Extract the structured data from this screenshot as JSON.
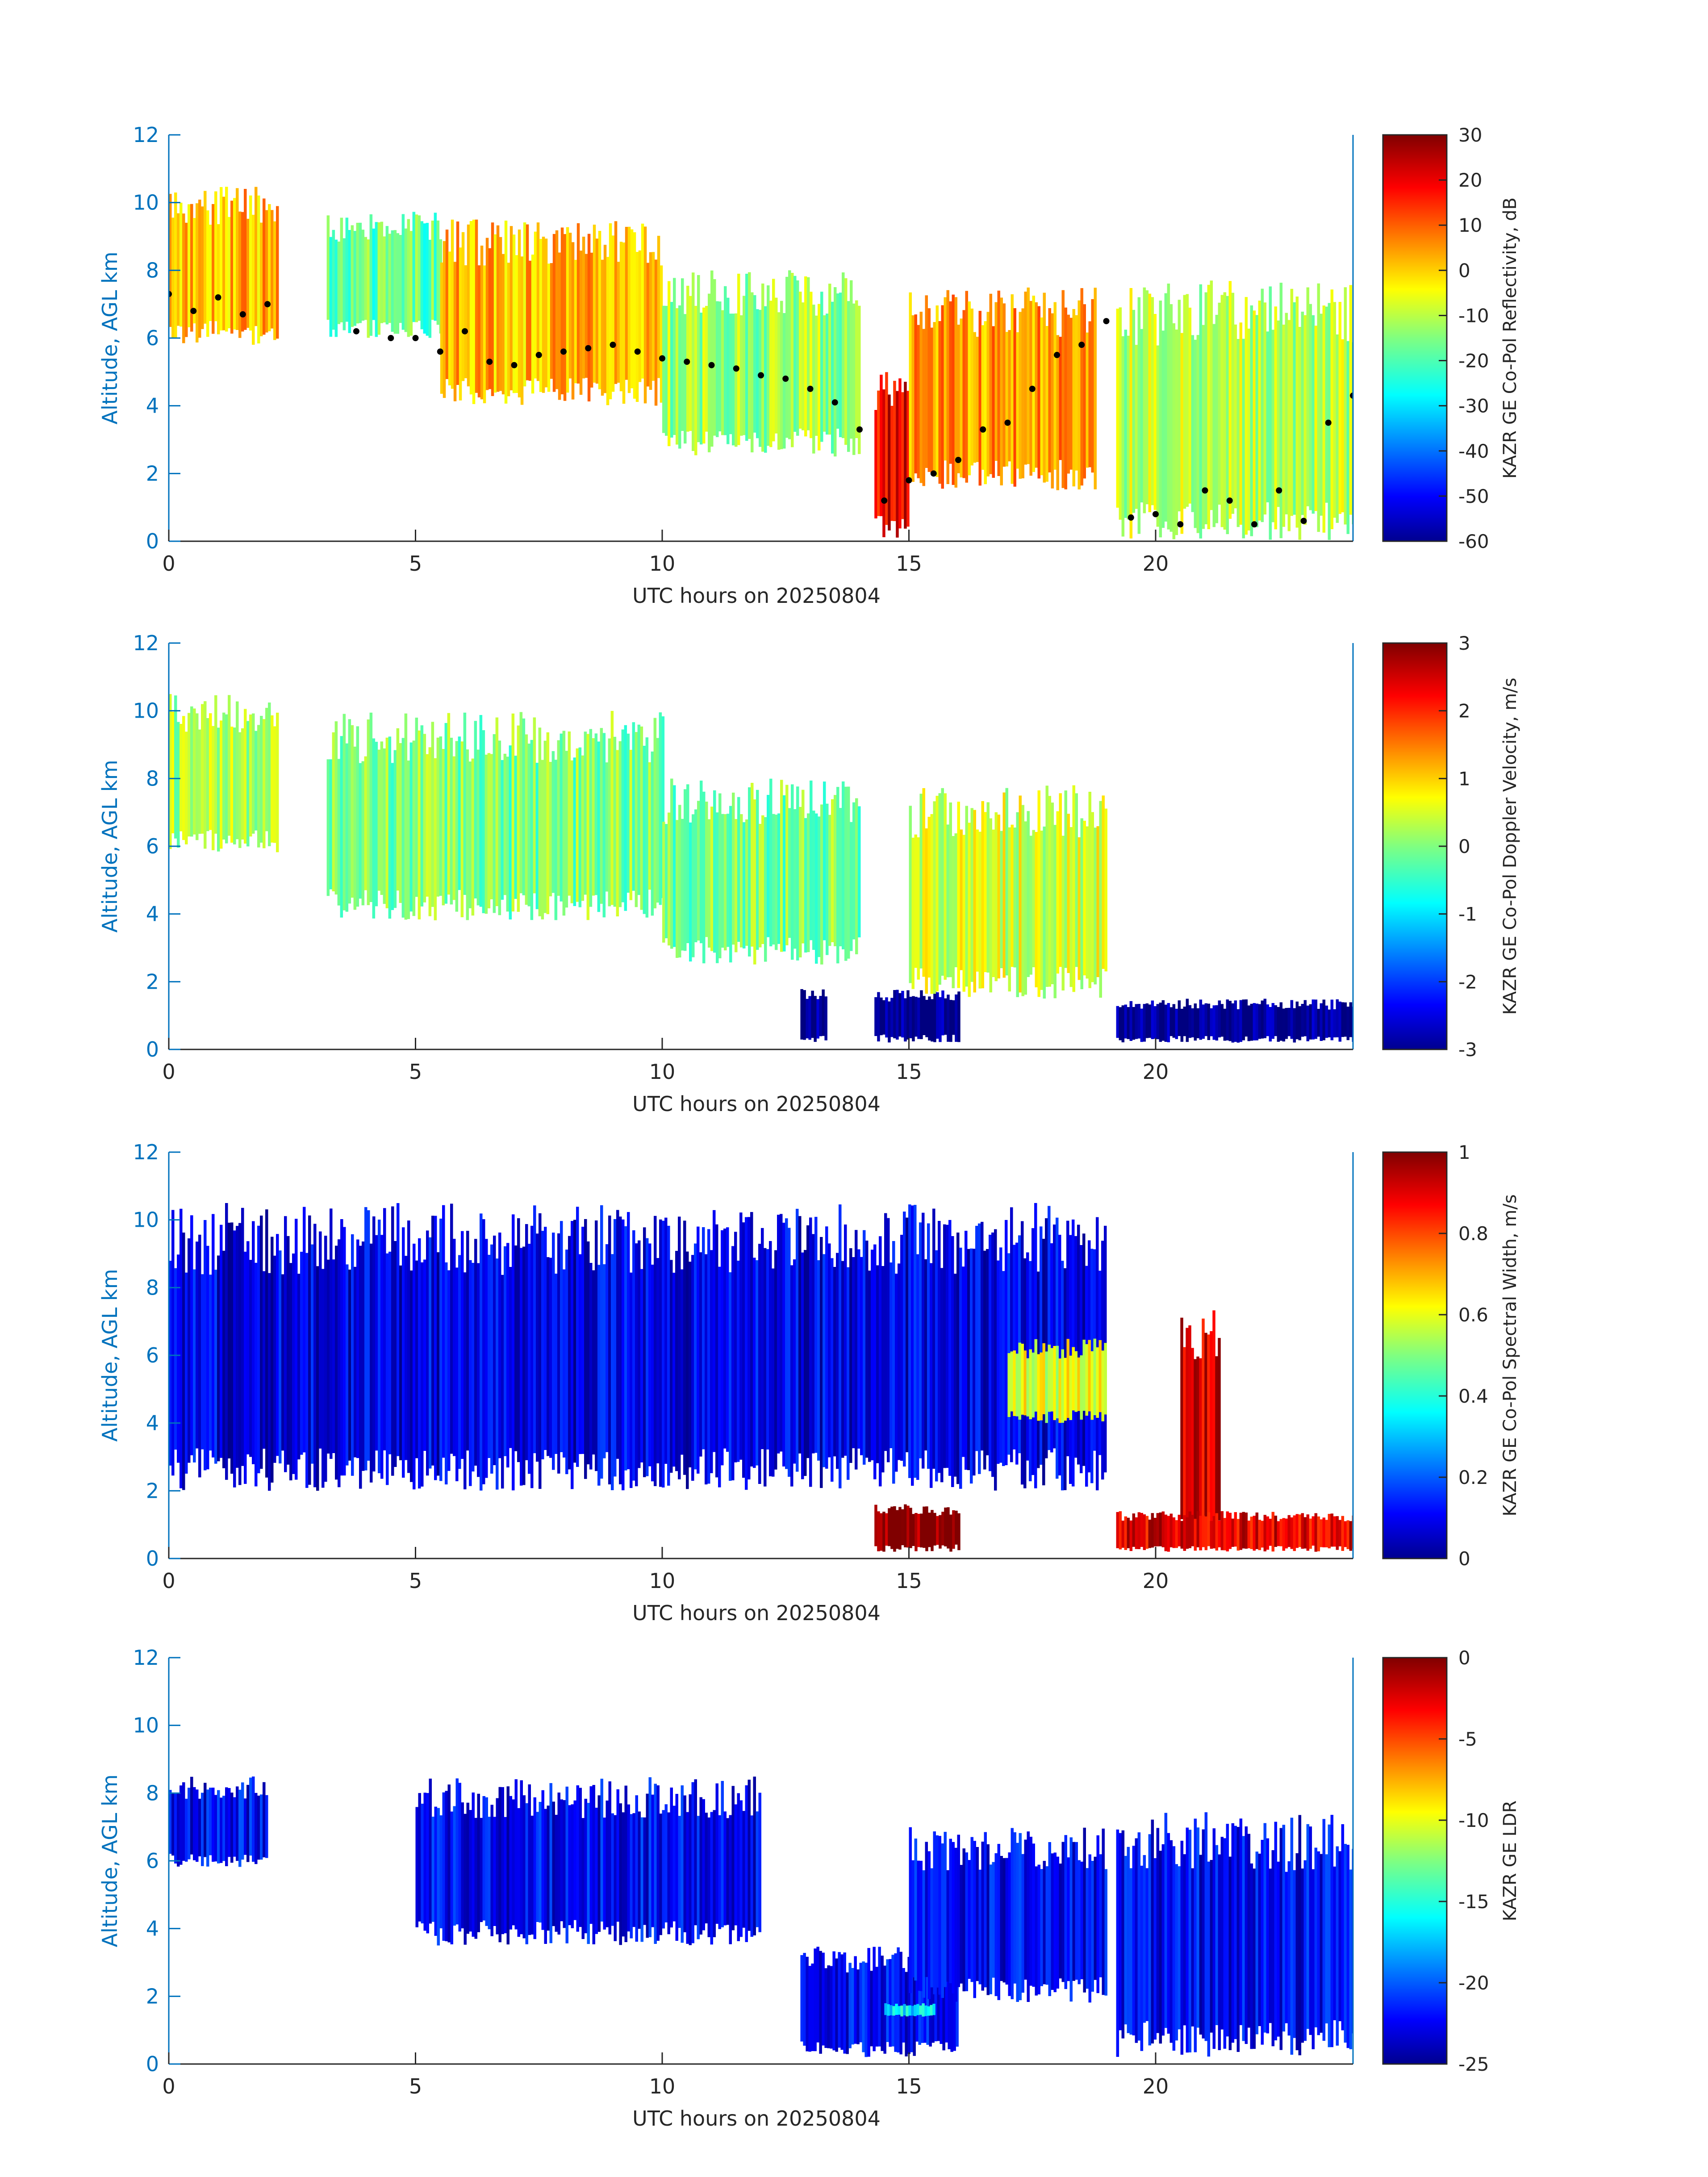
{
  "chart_data": [
    {
      "type": "heatmap",
      "xlabel": "UTC hours on 20250804",
      "ylabel": "Altitude, AGL km",
      "xlim": [
        0,
        24
      ],
      "ylim": [
        0,
        12
      ],
      "xticks": [
        "0",
        "5",
        "10",
        "15",
        "20"
      ],
      "yticks": [
        "0",
        "2",
        "4",
        "6",
        "8",
        "10",
        "12"
      ],
      "colormap": "jet",
      "colorbar": {
        "label": "KAZR GE Co-Pol Reflectivity, dB",
        "range": [
          -60,
          30
        ],
        "ticks": [
          "30",
          "20",
          "10",
          "0",
          "-10",
          "-20",
          "-30",
          "-40",
          "-50",
          "-60"
        ]
      },
      "overlay": {
        "type": "scatter",
        "color": "#000000",
        "x": [
          0.0,
          0.5,
          1.0,
          1.5,
          2.0,
          3.8,
          4.5,
          5.0,
          5.5,
          6.0,
          6.5,
          7.0,
          7.5,
          8.0,
          8.5,
          9.0,
          9.5,
          10.0,
          10.5,
          11.0,
          11.5,
          12.0,
          12.5,
          13.0,
          13.5,
          14.0,
          14.5,
          15.0,
          15.5,
          16.0,
          16.5,
          17.0,
          17.5,
          18.0,
          18.5,
          19.0,
          19.5,
          20.0,
          20.5,
          21.0,
          21.5,
          22.0,
          22.5,
          23.0,
          23.5,
          24.0
        ],
        "y": [
          7.3,
          6.8,
          7.2,
          6.7,
          7.0,
          6.2,
          6.0,
          6.0,
          5.6,
          6.2,
          5.3,
          5.2,
          5.5,
          5.6,
          5.7,
          5.8,
          5.6,
          5.4,
          5.3,
          5.2,
          5.1,
          4.9,
          4.8,
          4.5,
          4.1,
          3.3,
          1.2,
          1.8,
          2.0,
          2.4,
          3.3,
          3.5,
          4.5,
          5.5,
          5.8,
          6.5,
          0.7,
          0.8,
          0.5,
          1.5,
          1.2,
          0.5,
          1.5,
          0.6,
          3.5,
          4.3
        ]
      },
      "regions": [
        {
          "x": [
            0.0,
            2.2
          ],
          "top": 10.5,
          "bottom": 5.8,
          "level": "-5 to 10"
        },
        {
          "x": [
            3.2,
            5.5
          ],
          "top": 9.8,
          "bottom": 6.0,
          "level": "-25 to -10"
        },
        {
          "x": [
            5.5,
            10.0
          ],
          "top": 9.5,
          "bottom": 4.0,
          "level": "-10 to 15"
        },
        {
          "x": [
            10.0,
            14.0
          ],
          "top": 8.0,
          "bottom": 2.5,
          "level": "-30 to 5"
        },
        {
          "x": [
            14.3,
            15.0
          ],
          "top": 5.0,
          "bottom": 0.0,
          "level": "15 to 25"
        },
        {
          "x": [
            15.0,
            18.8
          ],
          "top": 7.5,
          "bottom": 1.5,
          "level": "-10 to 20"
        },
        {
          "x": [
            19.2,
            24.0
          ],
          "top": 7.7,
          "bottom": 0.0,
          "level": "-30 to 10"
        }
      ]
    },
    {
      "type": "heatmap",
      "xlabel": "UTC hours on 20250804",
      "ylabel": "Altitude, AGL km",
      "xlim": [
        0,
        24
      ],
      "ylim": [
        0,
        12
      ],
      "xticks": [
        "0",
        "5",
        "10",
        "15",
        "20"
      ],
      "yticks": [
        "0",
        "2",
        "4",
        "6",
        "8",
        "10",
        "12"
      ],
      "colormap": "jet",
      "colorbar": {
        "label": "KAZR GE Co-Pol Doppler Velocity, m/s",
        "range": [
          -3,
          3
        ],
        "ticks": [
          "3",
          "2",
          "1",
          "0",
          "-1",
          "-2",
          "-3"
        ]
      },
      "regions": [
        {
          "x": [
            0.0,
            2.2
          ],
          "top": 10.5,
          "bottom": 5.8,
          "level": "0 to 0.5"
        },
        {
          "x": [
            3.2,
            10.0
          ],
          "top": 10.0,
          "bottom": 3.8,
          "level": "-0.5 to 0.5"
        },
        {
          "x": [
            10.0,
            14.0
          ],
          "top": 8.0,
          "bottom": 2.5,
          "level": "-0.5 to 0.5"
        },
        {
          "x": [
            12.8,
            13.3
          ],
          "top": 1.8,
          "bottom": 0.2,
          "level": "-3"
        },
        {
          "x": [
            14.3,
            16.0
          ],
          "top": 1.8,
          "bottom": 0.2,
          "level": "-3"
        },
        {
          "x": [
            15.0,
            19.0
          ],
          "top": 7.8,
          "bottom": 1.5,
          "level": "0 to 1"
        },
        {
          "x": [
            19.2,
            24.0
          ],
          "top": 1.5,
          "bottom": 0.2,
          "level": "-3"
        }
      ]
    },
    {
      "type": "heatmap",
      "xlabel": "UTC hours on 20250804",
      "ylabel": "Altitude, AGL km",
      "xlim": [
        0,
        24
      ],
      "ylim": [
        0,
        12
      ],
      "xticks": [
        "0",
        "5",
        "10",
        "15",
        "20"
      ],
      "yticks": [
        "0",
        "2",
        "4",
        "6",
        "8",
        "10",
        "12"
      ],
      "colormap": "jet",
      "colorbar": {
        "label": "KAZR GE Co-Pol Spectral Width, m/s",
        "range": [
          0,
          1
        ],
        "ticks": [
          "1",
          "0.8",
          "0.6",
          "0.4",
          "0.2",
          "0"
        ]
      },
      "regions": [
        {
          "x": [
            0.0,
            19.0
          ],
          "top": 10.5,
          "bottom": 2.0,
          "level": "0 to 0.2"
        },
        {
          "x": [
            14.3,
            16.0
          ],
          "top": 1.6,
          "bottom": 0.2,
          "level": "1"
        },
        {
          "x": [
            17.0,
            19.0
          ],
          "top": 6.5,
          "bottom": 4.0,
          "level": "0.4 to 0.8"
        },
        {
          "x": [
            20.5,
            21.3
          ],
          "top": 7.5,
          "bottom": 0.2,
          "level": "0.8 to 1"
        },
        {
          "x": [
            19.2,
            24.0
          ],
          "top": 1.4,
          "bottom": 0.2,
          "level": "0.8 to 1"
        }
      ]
    },
    {
      "type": "heatmap",
      "xlabel": "UTC hours on 20250804",
      "ylabel": "Altitude, AGL km",
      "xlim": [
        0,
        24
      ],
      "ylim": [
        0,
        12
      ],
      "xticks": [
        "0",
        "5",
        "10",
        "15",
        "20"
      ],
      "yticks": [
        "0",
        "2",
        "4",
        "6",
        "8",
        "10",
        "12"
      ],
      "colormap": "jet",
      "colorbar": {
        "label": "KAZR GE LDR",
        "range": [
          -25,
          0
        ],
        "ticks": [
          "0",
          "-5",
          "-10",
          "-15",
          "-20",
          "-25"
        ]
      },
      "regions": [
        {
          "x": [
            0.0,
            2.0
          ],
          "top": 8.5,
          "bottom": 5.8,
          "level": "-22"
        },
        {
          "x": [
            5.0,
            12.0
          ],
          "top": 8.5,
          "bottom": 3.5,
          "level": "-22"
        },
        {
          "x": [
            12.8,
            16.0
          ],
          "top": 3.5,
          "bottom": 0.2,
          "level": "-22"
        },
        {
          "x": [
            15.0,
            19.0
          ],
          "top": 7.0,
          "bottom": 1.8,
          "level": "-22"
        },
        {
          "x": [
            19.2,
            24.0
          ],
          "top": 7.5,
          "bottom": 0.2,
          "level": "-22"
        },
        {
          "x": [
            14.5,
            15.5
          ],
          "top": 1.8,
          "bottom": 1.4,
          "level": "-16"
        }
      ]
    }
  ]
}
